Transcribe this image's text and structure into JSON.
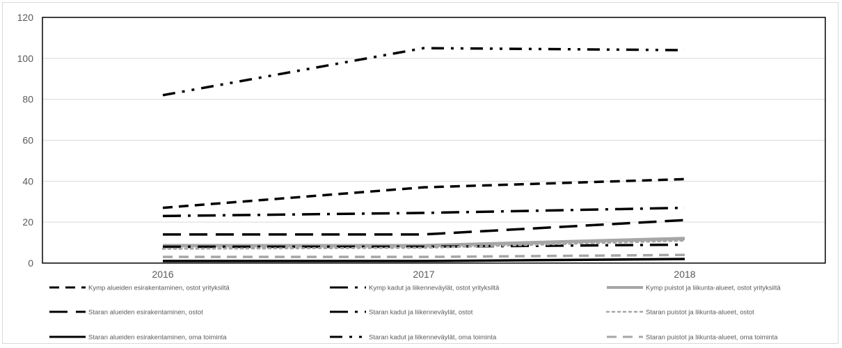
{
  "chart_data": {
    "type": "line",
    "title": "",
    "xlabel": "",
    "ylabel": "",
    "x": [
      "2016",
      "2017",
      "2018"
    ],
    "ylim": [
      0,
      120
    ],
    "yticks": [
      0,
      20,
      40,
      60,
      80,
      100,
      120
    ],
    "grid": true,
    "legend_position": "bottom",
    "series": [
      {
        "name": "Kymp alueiden esirakentaminen, ostot yrityksiltä",
        "values": [
          27,
          37,
          41
        ],
        "color": "#000000",
        "style": "dash"
      },
      {
        "name": "Kymp kadut ja liikenneväylät, ostot yrityksiltä",
        "values": [
          23,
          24.5,
          27
        ],
        "color": "#000000",
        "style": "longdashdot"
      },
      {
        "name": "Kymp puistot ja liikunta-alueet, ostot yrityksiltä",
        "values": [
          8.5,
          8.5,
          12
        ],
        "color": "#a6a6a6",
        "style": "solid"
      },
      {
        "name": "Staran alueiden esirakentaminen, ostot",
        "values": [
          14,
          14,
          21
        ],
        "color": "#000000",
        "style": "longdash"
      },
      {
        "name": "Staran kadut ja liikenneväylät, ostot",
        "values": [
          8,
          8,
          9
        ],
        "color": "#000000",
        "style": "longdashdot"
      },
      {
        "name": "Staran puistot ja liikunta-alueet, ostot",
        "values": [
          7,
          7.5,
          11
        ],
        "color": "#a6a6a6",
        "style": "dot"
      },
      {
        "name": "Staran alueiden esirakentaminen, oma toiminta",
        "values": [
          1,
          1,
          2
        ],
        "color": "#000000",
        "style": "solid"
      },
      {
        "name": "Staran kadut ja liikenneväylät, oma toiminta",
        "values": [
          82,
          105,
          104
        ],
        "color": "#000000",
        "style": "dashdotdot"
      },
      {
        "name": "Staran puistot ja liikunta-alueet, oma toiminta",
        "values": [
          3,
          3,
          4
        ],
        "color": "#a6a6a6",
        "style": "dash"
      }
    ]
  }
}
